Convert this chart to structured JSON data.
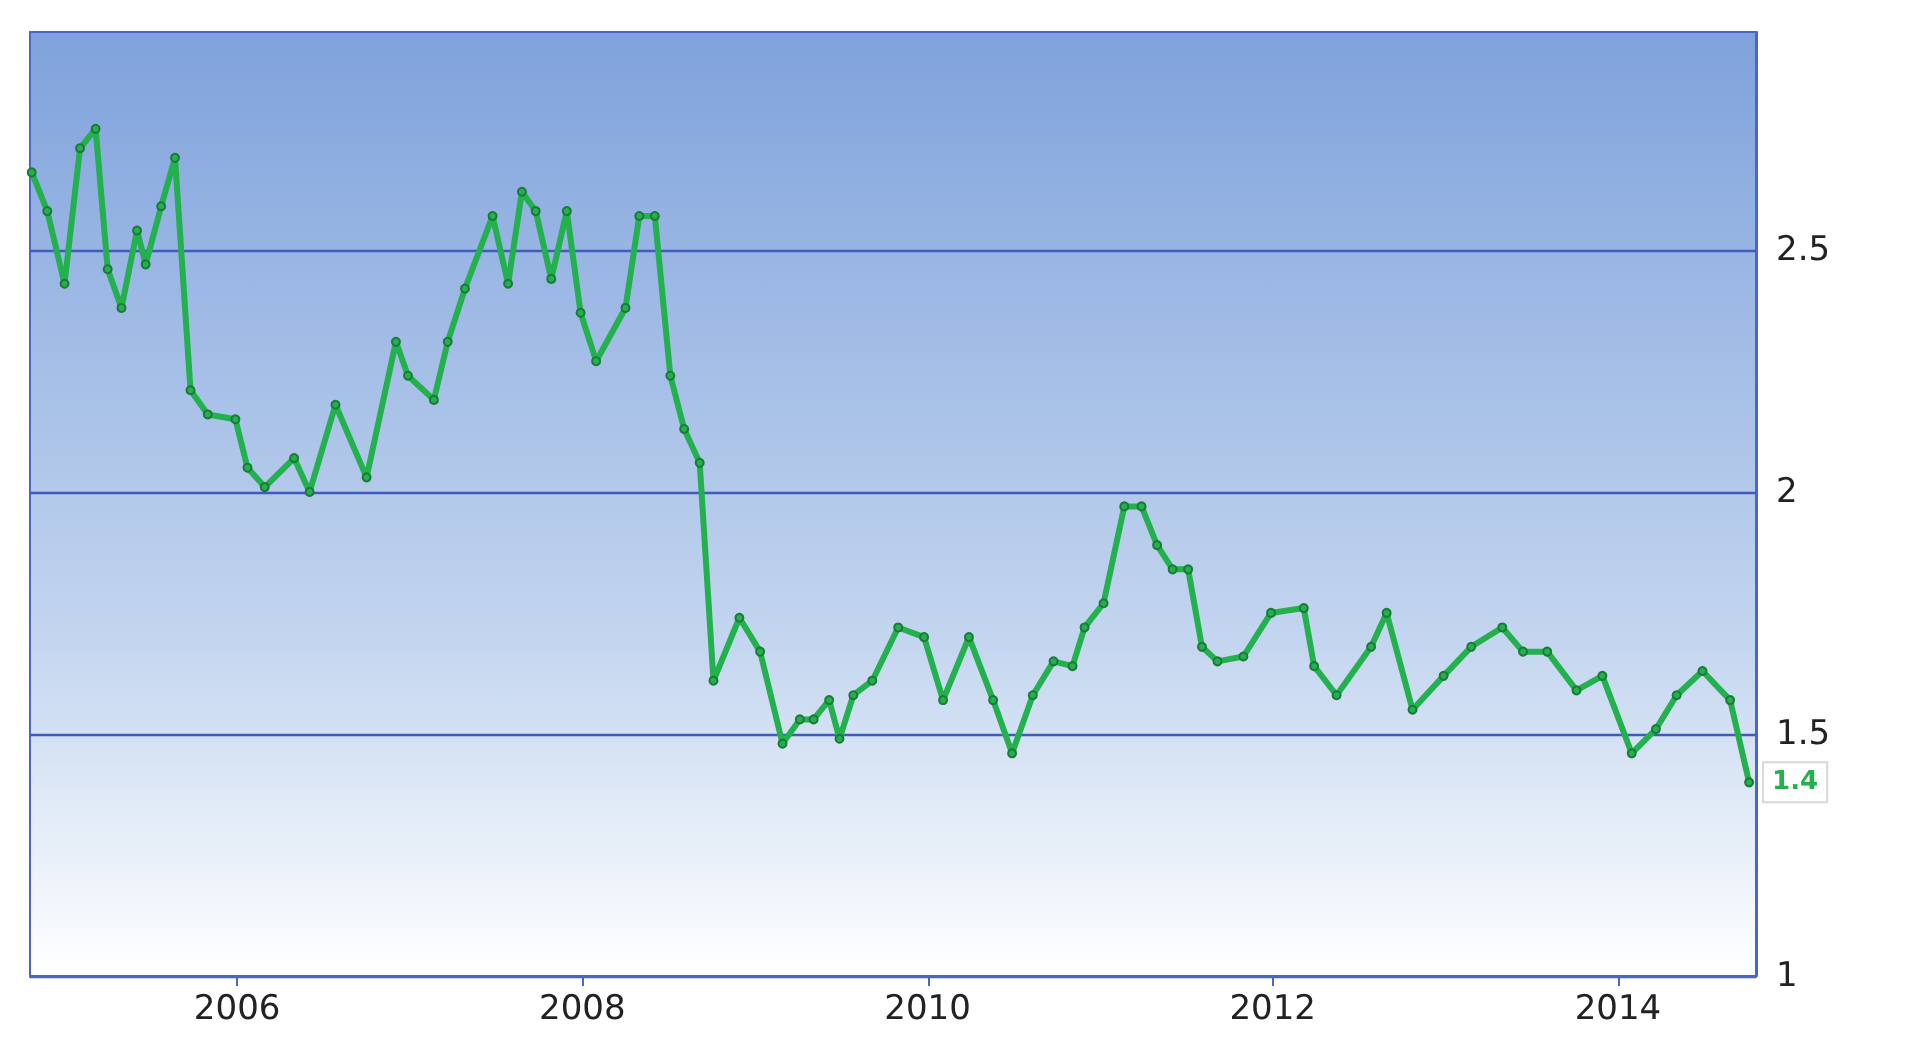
{
  "chart_data": {
    "type": "line",
    "marker": "circle",
    "line_style": "solid",
    "grid": "y",
    "x": [
      2004.81,
      2004.9,
      2005.0,
      2005.09,
      2005.18,
      2005.25,
      2005.33,
      2005.42,
      2005.47,
      2005.56,
      2005.64,
      2005.73,
      2005.83,
      2005.99,
      2006.06,
      2006.16,
      2006.33,
      2006.42,
      2006.57,
      2006.75,
      2006.92,
      2006.99,
      2007.14,
      2007.22,
      2007.32,
      2007.48,
      2007.57,
      2007.65,
      2007.73,
      2007.82,
      2007.91,
      2007.99,
      2008.08,
      2008.25,
      2008.33,
      2008.42,
      2008.51,
      2008.59,
      2008.68,
      2008.76,
      2008.91,
      2009.03,
      2009.16,
      2009.26,
      2009.34,
      2009.43,
      2009.49,
      2009.57,
      2009.68,
      2009.83,
      2009.98,
      2010.09,
      2010.24,
      2010.38,
      2010.49,
      2010.61,
      2010.73,
      2010.84,
      2010.91,
      2011.02,
      2011.14,
      2011.24,
      2011.33,
      2011.42,
      2011.51,
      2011.59,
      2011.68,
      2011.83,
      2011.99,
      2012.18,
      2012.24,
      2012.37,
      2012.57,
      2012.66,
      2012.81,
      2012.99,
      2013.15,
      2013.33,
      2013.45,
      2013.59,
      2013.76,
      2013.91,
      2014.08,
      2014.22,
      2014.34,
      2014.49,
      2014.65,
      2014.76
    ],
    "series": [
      {
        "color": "#22b14c",
        "values": [
          2.66,
          2.58,
          2.43,
          2.71,
          2.75,
          2.46,
          2.38,
          2.54,
          2.47,
          2.59,
          2.69,
          2.21,
          2.16,
          2.15,
          2.05,
          2.01,
          2.07,
          2.0,
          2.18,
          2.03,
          2.31,
          2.24,
          2.19,
          2.31,
          2.42,
          2.57,
          2.43,
          2.62,
          2.58,
          2.44,
          2.58,
          2.37,
          2.27,
          2.38,
          2.57,
          2.57,
          2.24,
          2.13,
          2.06,
          1.61,
          1.74,
          1.67,
          1.48,
          1.53,
          1.53,
          1.57,
          1.49,
          1.58,
          1.61,
          1.72,
          1.7,
          1.57,
          1.7,
          1.57,
          1.46,
          1.58,
          1.65,
          1.64,
          1.72,
          1.77,
          1.97,
          1.97,
          1.89,
          1.84,
          1.84,
          1.68,
          1.65,
          1.66,
          1.75,
          1.76,
          1.64,
          1.58,
          1.68,
          1.75,
          1.55,
          1.62,
          1.68,
          1.72,
          1.67,
          1.67,
          1.59,
          1.62,
          1.46,
          1.51,
          1.58,
          1.63,
          1.57,
          1.4
        ],
        "value_labels": [
          null,
          null,
          null,
          null,
          null,
          null,
          null,
          null,
          null,
          null,
          null,
          null,
          null,
          null,
          null,
          null,
          null,
          null,
          null,
          null,
          null,
          null,
          null,
          null,
          null,
          null,
          null,
          null,
          null,
          null,
          null,
          null,
          null,
          null,
          null,
          null,
          null,
          null,
          null,
          null,
          null,
          null,
          null,
          null,
          null,
          null,
          null,
          null,
          null,
          null,
          null,
          null,
          null,
          null,
          null,
          null,
          null,
          null,
          null,
          null,
          null,
          null,
          null,
          null,
          null,
          null,
          null,
          null,
          null,
          null,
          null,
          null,
          null,
          null,
          null,
          null,
          null,
          null,
          null,
          null,
          null,
          null,
          null,
          null,
          null,
          null,
          null,
          "1.4"
        ]
      }
    ],
    "xlim": [
      2004.8,
      2014.8
    ],
    "xticks": [
      2006,
      2008,
      2010,
      2012,
      2014
    ],
    "ylim": [
      1,
      2.95
    ],
    "yticks": [
      1,
      1.5,
      2,
      2.5
    ]
  }
}
